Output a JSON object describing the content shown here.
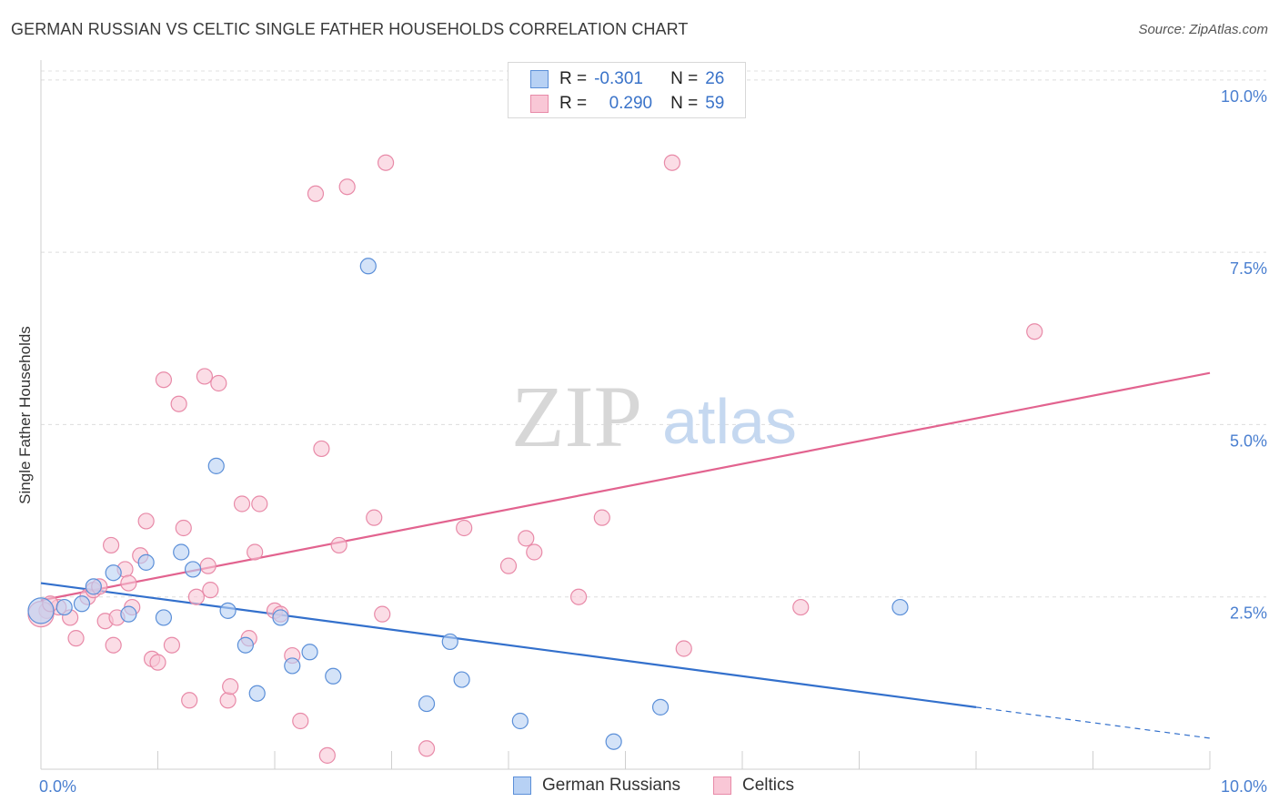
{
  "title": "GERMAN RUSSIAN VS CELTIC SINGLE FATHER HOUSEHOLDS CORRELATION CHART",
  "source": "Source: ZipAtlas.com",
  "watermark": {
    "zip": "ZIP",
    "atlas": "atlas"
  },
  "legend": {
    "r_label": "R =",
    "n_label": "N =",
    "series": [
      {
        "name": "German Russians",
        "r": "-0.301",
        "n": "26",
        "fill": "#b7d1f4",
        "stroke": "#5b8fd8",
        "line": "#3370cc"
      },
      {
        "name": "Celtics",
        "r": "0.290",
        "n": "59",
        "fill": "#f9c7d6",
        "stroke": "#e88aa8",
        "line": "#e2638f"
      }
    ]
  },
  "chart_data": {
    "type": "scatter",
    "title": "GERMAN RUSSIAN VS CELTIC SINGLE FATHER HOUSEHOLDS CORRELATION CHART",
    "xlabel": "",
    "ylabel": "Single Father Households",
    "xlim": [
      0,
      10
    ],
    "ylim": [
      0,
      10.5
    ],
    "x_tick_labels": [
      {
        "value": 0,
        "label": "0.0%"
      },
      {
        "value": 10,
        "label": "10.0%"
      }
    ],
    "y_ticks": [
      {
        "value": 2.5,
        "label": "2.5%"
      },
      {
        "value": 5.0,
        "label": "5.0%"
      },
      {
        "value": 7.5,
        "label": "7.5%"
      },
      {
        "value": 10.0,
        "label": "10.0%"
      }
    ],
    "series": [
      {
        "name": "German Russians",
        "points": [
          {
            "x": 0.0,
            "y": 2.3
          },
          {
            "x": 0.2,
            "y": 2.35
          },
          {
            "x": 0.35,
            "y": 2.4
          },
          {
            "x": 0.45,
            "y": 2.65
          },
          {
            "x": 0.62,
            "y": 2.85
          },
          {
            "x": 0.75,
            "y": 2.25
          },
          {
            "x": 0.9,
            "y": 3.0
          },
          {
            "x": 1.05,
            "y": 2.2
          },
          {
            "x": 1.2,
            "y": 3.15
          },
          {
            "x": 1.3,
            "y": 2.9
          },
          {
            "x": 1.5,
            "y": 4.4
          },
          {
            "x": 1.6,
            "y": 2.3
          },
          {
            "x": 1.75,
            "y": 1.8
          },
          {
            "x": 1.85,
            "y": 1.1
          },
          {
            "x": 2.05,
            "y": 2.2
          },
          {
            "x": 2.15,
            "y": 1.5
          },
          {
            "x": 2.3,
            "y": 1.7
          },
          {
            "x": 2.5,
            "y": 1.35
          },
          {
            "x": 2.8,
            "y": 7.3
          },
          {
            "x": 3.3,
            "y": 0.95
          },
          {
            "x": 3.5,
            "y": 1.85
          },
          {
            "x": 3.6,
            "y": 1.3
          },
          {
            "x": 4.1,
            "y": 0.7
          },
          {
            "x": 4.9,
            "y": 0.4
          },
          {
            "x": 5.3,
            "y": 0.9
          },
          {
            "x": 7.35,
            "y": 2.35
          }
        ],
        "trend": {
          "x0": 0.0,
          "y0": 2.7,
          "x1": 8.0,
          "y1": 0.9,
          "dash_to_x": 10.0,
          "dash_to_y": 0.45
        }
      },
      {
        "name": "Celtics",
        "points": [
          {
            "x": 0.05,
            "y": 2.3
          },
          {
            "x": 0.15,
            "y": 2.35
          },
          {
            "x": 0.25,
            "y": 2.2
          },
          {
            "x": 0.3,
            "y": 1.9
          },
          {
            "x": 0.4,
            "y": 2.5
          },
          {
            "x": 0.45,
            "y": 2.6
          },
          {
            "x": 0.5,
            "y": 2.65
          },
          {
            "x": 0.55,
            "y": 2.15
          },
          {
            "x": 0.6,
            "y": 3.25
          },
          {
            "x": 0.62,
            "y": 1.8
          },
          {
            "x": 0.65,
            "y": 2.2
          },
          {
            "x": 0.72,
            "y": 2.9
          },
          {
            "x": 0.75,
            "y": 2.7
          },
          {
            "x": 0.78,
            "y": 2.35
          },
          {
            "x": 0.85,
            "y": 3.1
          },
          {
            "x": 0.9,
            "y": 3.6
          },
          {
            "x": 0.95,
            "y": 1.6
          },
          {
            "x": 1.0,
            "y": 1.55
          },
          {
            "x": 1.05,
            "y": 5.65
          },
          {
            "x": 1.12,
            "y": 1.8
          },
          {
            "x": 1.18,
            "y": 5.3
          },
          {
            "x": 1.22,
            "y": 3.5
          },
          {
            "x": 1.27,
            "y": 1.0
          },
          {
            "x": 1.33,
            "y": 2.5
          },
          {
            "x": 1.4,
            "y": 5.7
          },
          {
            "x": 1.43,
            "y": 2.95
          },
          {
            "x": 1.45,
            "y": 2.6
          },
          {
            "x": 1.52,
            "y": 5.6
          },
          {
            "x": 1.6,
            "y": 1.0
          },
          {
            "x": 1.62,
            "y": 1.2
          },
          {
            "x": 1.72,
            "y": 3.85
          },
          {
            "x": 1.78,
            "y": 1.9
          },
          {
            "x": 1.83,
            "y": 3.15
          },
          {
            "x": 1.87,
            "y": 3.85
          },
          {
            "x": 2.0,
            "y": 2.3
          },
          {
            "x": 2.05,
            "y": 2.25
          },
          {
            "x": 2.15,
            "y": 1.65
          },
          {
            "x": 2.22,
            "y": 0.7
          },
          {
            "x": 2.35,
            "y": 8.35
          },
          {
            "x": 2.4,
            "y": 4.65
          },
          {
            "x": 2.45,
            "y": 0.2
          },
          {
            "x": 2.55,
            "y": 3.25
          },
          {
            "x": 2.62,
            "y": 8.45
          },
          {
            "x": 2.85,
            "y": 3.65
          },
          {
            "x": 2.92,
            "y": 2.25
          },
          {
            "x": 2.95,
            "y": 8.8
          },
          {
            "x": 3.3,
            "y": 0.3
          },
          {
            "x": 3.62,
            "y": 3.5
          },
          {
            "x": 4.0,
            "y": 2.95
          },
          {
            "x": 4.15,
            "y": 3.35
          },
          {
            "x": 4.22,
            "y": 3.15
          },
          {
            "x": 4.6,
            "y": 2.5
          },
          {
            "x": 4.8,
            "y": 3.65
          },
          {
            "x": 5.4,
            "y": 8.8
          },
          {
            "x": 5.5,
            "y": 1.75
          },
          {
            "x": 6.5,
            "y": 2.35
          },
          {
            "x": 8.5,
            "y": 6.35
          },
          {
            "x": 0.0,
            "y": 2.25
          },
          {
            "x": 0.08,
            "y": 2.4
          }
        ],
        "trend": {
          "x0": 0.0,
          "y0": 2.45,
          "x1": 10.0,
          "y1": 5.75
        }
      }
    ]
  }
}
